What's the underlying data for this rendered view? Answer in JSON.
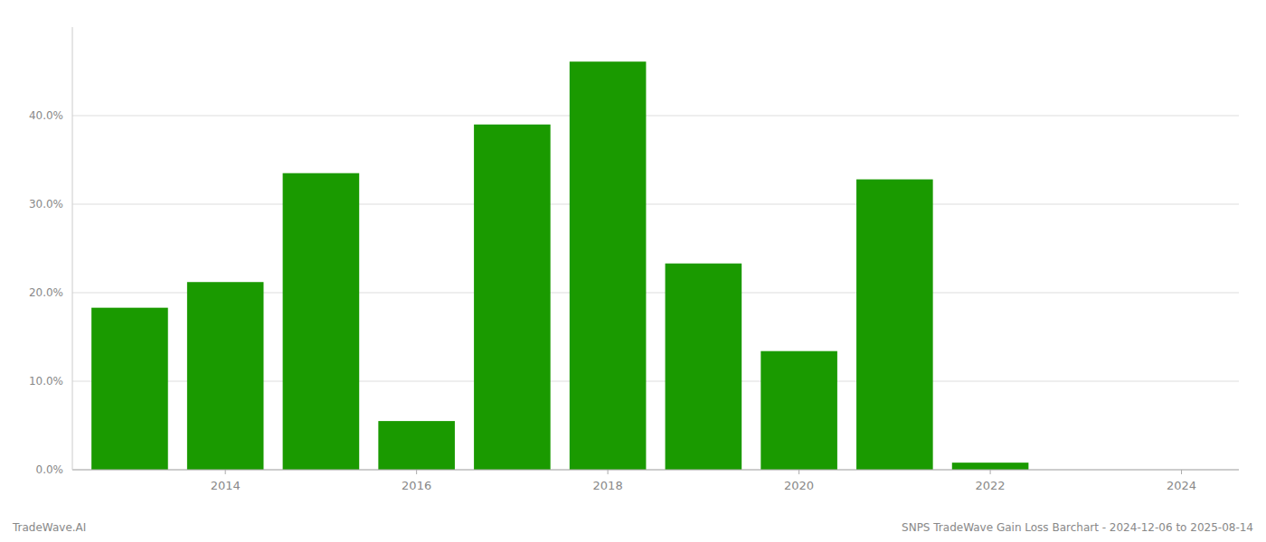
{
  "chart_data": {
    "type": "bar",
    "x": [
      2013,
      2014,
      2015,
      2016,
      2017,
      2018,
      2019,
      2020,
      2021,
      2022,
      2023,
      2024
    ],
    "values": [
      0.183,
      0.212,
      0.335,
      0.055,
      0.39,
      0.461,
      0.233,
      0.134,
      0.328,
      0.008,
      0.0,
      0.0
    ],
    "color": "#1a9a00",
    "xlim": [
      2012.4,
      2024.6
    ],
    "xticks": [
      2014,
      2016,
      2018,
      2020,
      2022,
      2024
    ],
    "ylim": [
      0,
      0.5
    ],
    "yticks": [
      {
        "value": 0.0,
        "label": "0.0%"
      },
      {
        "value": 0.1,
        "label": "10.0%"
      },
      {
        "value": 0.2,
        "label": "20.0%"
      },
      {
        "value": 0.3,
        "label": "30.0%"
      },
      {
        "value": 0.4,
        "label": "40.0%"
      }
    ],
    "grid": true,
    "annotations": [
      "TradeWave.AI",
      "SNPS TradeWave Gain Loss Barchart - 2024-12-06 to 2025-08-14"
    ]
  }
}
